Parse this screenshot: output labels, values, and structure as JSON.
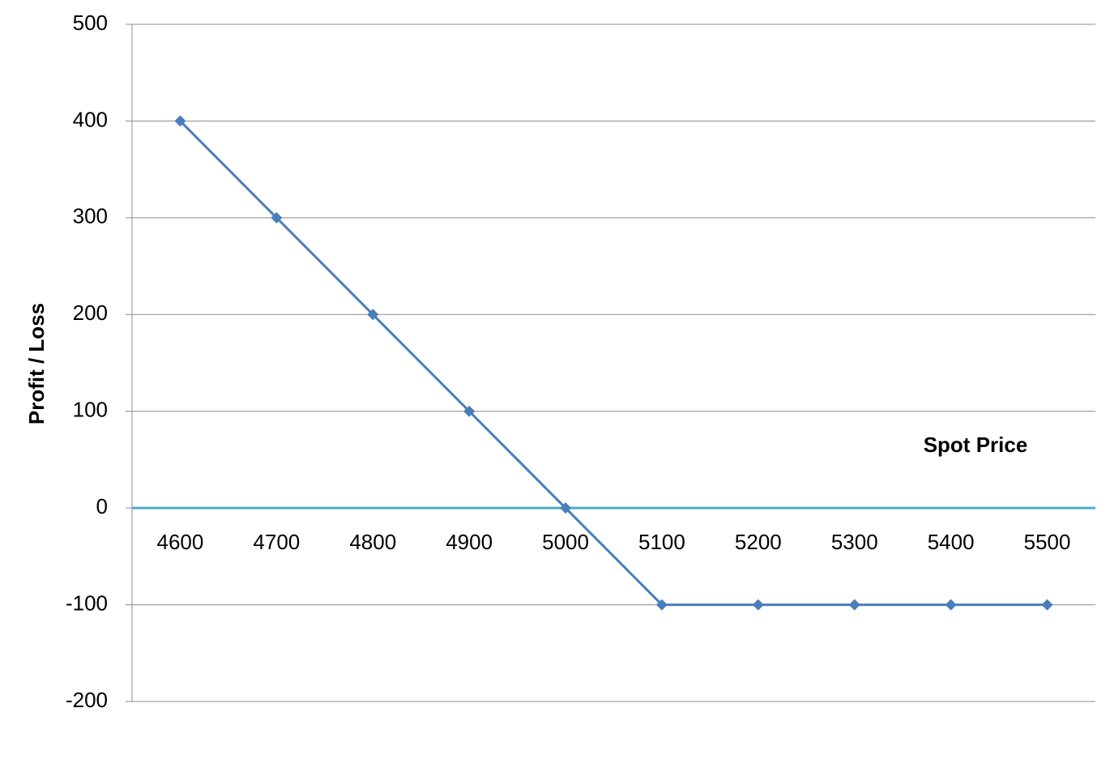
{
  "chart_data": {
    "type": "line",
    "x_label": "Spot Price",
    "y_label": "Profit / Loss",
    "categories": [
      "4600",
      "4700",
      "4800",
      "4900",
      "5000",
      "5100",
      "5200",
      "5300",
      "5400",
      "5500"
    ],
    "values": [
      400,
      300,
      200,
      100,
      0,
      -100,
      -100,
      -100,
      -100,
      -100
    ],
    "color": "#4a7ebb",
    "axis_color": "#4bacc6",
    "ylim": [
      -200,
      500
    ],
    "yticks": [
      -200,
      -100,
      0,
      100,
      200,
      300,
      400,
      500
    ],
    "grid": true
  }
}
